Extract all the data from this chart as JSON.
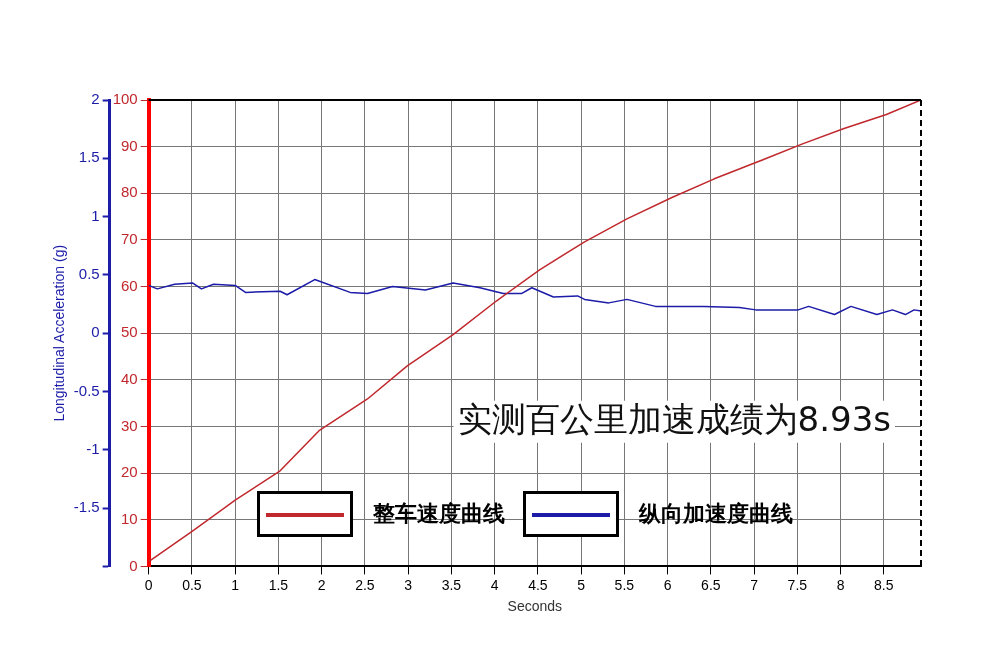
{
  "chart_data": {
    "type": "line",
    "xlabel": "Seconds",
    "y2label": "Longitudinal Acceleration (g)",
    "annotations": [
      "实测百公里加速成绩为8.93s"
    ],
    "xlim": [
      0,
      8.93
    ],
    "xticks": [
      0,
      0.5,
      1,
      1.5,
      2,
      2.5,
      3,
      3.5,
      4,
      4.5,
      5,
      5.5,
      6,
      6.5,
      7,
      7.5,
      8,
      8.5
    ],
    "ylim": [
      0,
      100
    ],
    "yticks": [
      0,
      10,
      20,
      30,
      40,
      50,
      60,
      70,
      80,
      90,
      100
    ],
    "y2lim": [
      -2,
      2
    ],
    "y2ticks": [
      {
        "value": -2,
        "label": null
      },
      -1.5,
      -1,
      -0.5,
      0,
      0.5,
      1,
      1.5,
      2
    ],
    "grid": true,
    "legend": "bottom",
    "marker": "none",
    "line_style": "solid",
    "series": [
      {
        "name": "整车速度曲线",
        "color": "#c0282d",
        "x": [
          0,
          0.51,
          1,
          1.52,
          1.97,
          2.53,
          2.99,
          3.52,
          4.02,
          4.52,
          5.04,
          5.53,
          6.05,
          6.54,
          7.05,
          7.56,
          8.04,
          8.53,
          8.93
        ],
        "values": [
          1,
          7.6,
          14.2,
          20.5,
          29.1,
          35.9,
          43,
          49.7,
          56.9,
          63.6,
          69.6,
          74.5,
          79.1,
          83.1,
          86.8,
          90.6,
          93.9,
          96.9,
          100
        ]
      },
      {
        "name": "纵向加速度曲线",
        "color": "#1c1ca8",
        "axis": "y2",
        "x": [
          0,
          0.1,
          0.3,
          0.51,
          0.61,
          0.75,
          1,
          1.12,
          1.52,
          1.6,
          1.92,
          2.33,
          2.53,
          2.82,
          3.2,
          3.52,
          3.83,
          4.1,
          4.31,
          4.43,
          4.68,
          4.96,
          5.04,
          5.32,
          5.53,
          5.86,
          6.42,
          6.83,
          7.02,
          7.51,
          7.63,
          7.93,
          8.12,
          8.42,
          8.6,
          8.75,
          8.85,
          8.93
        ],
        "values": [
          0.41,
          0.38,
          0.42,
          0.43,
          0.38,
          0.42,
          0.41,
          0.35,
          0.36,
          0.33,
          0.46,
          0.35,
          0.34,
          0.4,
          0.37,
          0.43,
          0.39,
          0.34,
          0.34,
          0.39,
          0.31,
          0.32,
          0.29,
          0.26,
          0.29,
          0.23,
          0.23,
          0.22,
          0.2,
          0.2,
          0.23,
          0.16,
          0.23,
          0.16,
          0.2,
          0.16,
          0.2,
          0.19
        ]
      }
    ]
  }
}
